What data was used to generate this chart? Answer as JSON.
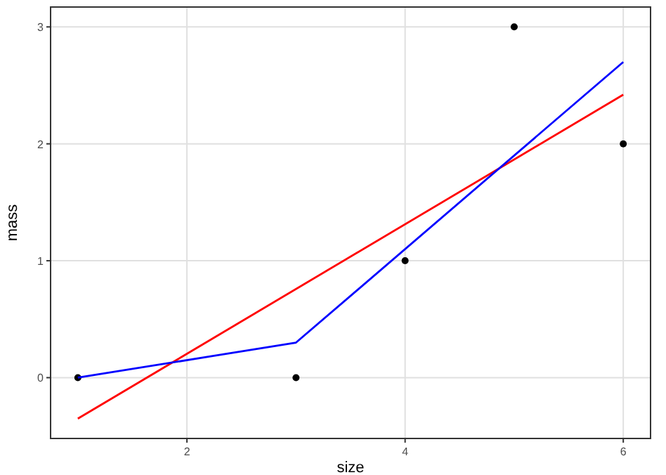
{
  "chart_data": {
    "type": "scatter",
    "xlabel": "size",
    "ylabel": "mass",
    "xlim": [
      0.75,
      6.25
    ],
    "ylim": [
      -0.52,
      3.17
    ],
    "xticks": [
      2,
      4,
      6
    ],
    "yticks": [
      0,
      1,
      2,
      3
    ],
    "grid": true,
    "series": [
      {
        "marker": "circle",
        "color": "#000000",
        "x": [
          1,
          3,
          4,
          5,
          6
        ],
        "values": [
          0,
          0,
          1,
          3,
          2
        ]
      },
      {
        "type": "line",
        "color": "#ff0000",
        "x": [
          1,
          6
        ],
        "values": [
          -0.35,
          2.42
        ]
      },
      {
        "type": "line",
        "color": "#0000ff",
        "x": [
          1,
          3,
          6
        ],
        "values": [
          0,
          0.3,
          2.7
        ]
      }
    ]
  }
}
